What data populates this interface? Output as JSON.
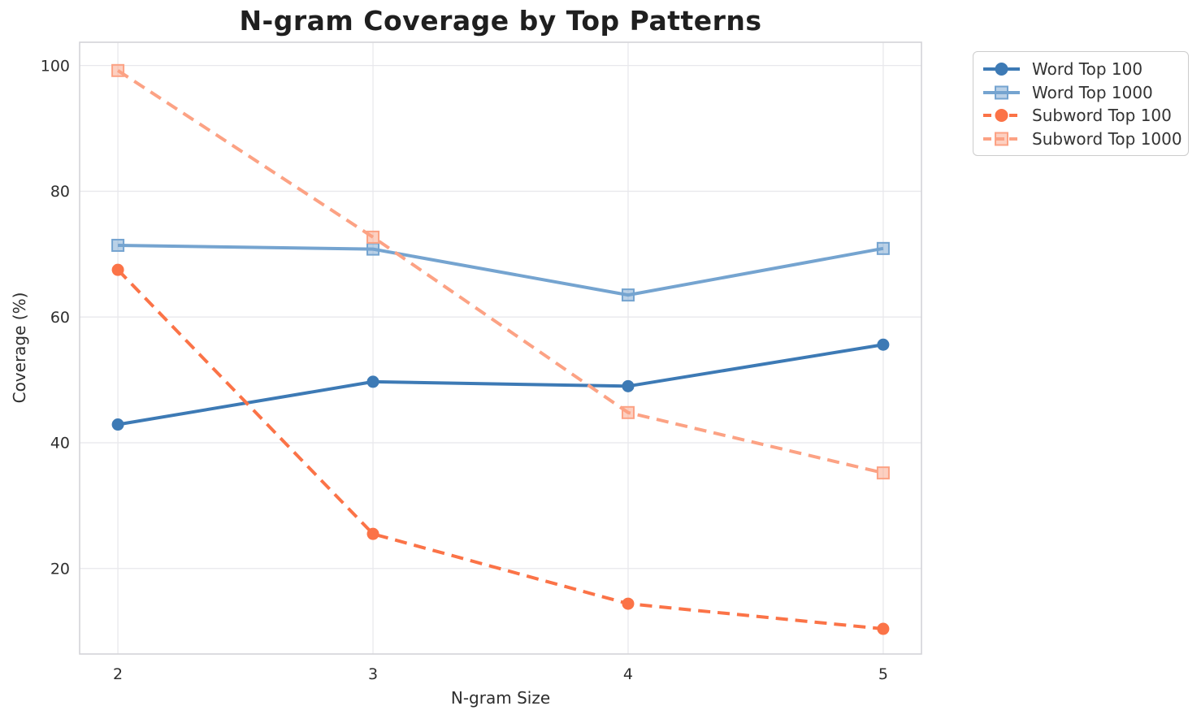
{
  "chart_data": {
    "type": "line",
    "title": "N-gram Coverage by Top Patterns",
    "xlabel": "N-gram Size",
    "ylabel": "Coverage (%)",
    "x": [
      2,
      3,
      4,
      5
    ],
    "x_tick_labels": [
      "2",
      "3",
      "4",
      "5"
    ],
    "y_ticks": [
      20,
      40,
      60,
      80,
      100
    ],
    "y_tick_labels": [
      "20",
      "40",
      "60",
      "80",
      "100"
    ],
    "xlim": [
      1.85,
      5.15
    ],
    "ylim": [
      6.4,
      103.7
    ],
    "grid": true,
    "legend_position": "outside-top-right",
    "series": [
      {
        "name": "Word Top 100",
        "values": [
          42.9,
          49.7,
          49.0,
          55.6
        ],
        "color": "#3d7ab5",
        "line_style": "solid",
        "marker": "circle"
      },
      {
        "name": "Word Top 1000",
        "values": [
          71.4,
          70.8,
          63.5,
          70.9
        ],
        "color": "#75a4d0",
        "line_style": "solid",
        "marker": "square"
      },
      {
        "name": "Subword Top 100",
        "values": [
          67.5,
          25.5,
          14.4,
          10.4
        ],
        "color": "#fb7347",
        "line_style": "dashed",
        "marker": "circle"
      },
      {
        "name": "Subword Top 1000",
        "values": [
          99.2,
          72.7,
          44.8,
          35.2
        ],
        "color": "#fca284",
        "line_style": "dashed",
        "marker": "square"
      }
    ]
  },
  "colors": {
    "background": "#ffffff",
    "gridline": "#e8e8ec",
    "spine": "#d4d4d8",
    "tick_text": "#2e2e2e",
    "title_text": "#1f1f1f",
    "legend_border": "#cccccc"
  }
}
